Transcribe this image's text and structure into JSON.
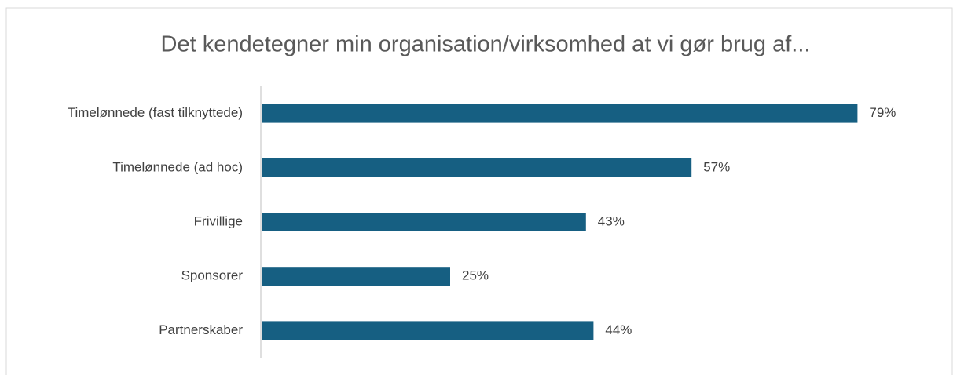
{
  "chart_data": {
    "type": "bar",
    "orientation": "horizontal",
    "title": "Det kendetegner min organisation/virksomhed at vi gør brug af...",
    "categories": [
      "Timelønnede (fast tilknyttede)",
      "Timelønnede (ad hoc)",
      "Frivillige",
      "Sponsorer",
      "Partnerskaber"
    ],
    "values": [
      79,
      57,
      43,
      25,
      44
    ],
    "value_labels": [
      "79%",
      "57%",
      "43%",
      "25%",
      "44%"
    ],
    "color": "#165f82"
  }
}
